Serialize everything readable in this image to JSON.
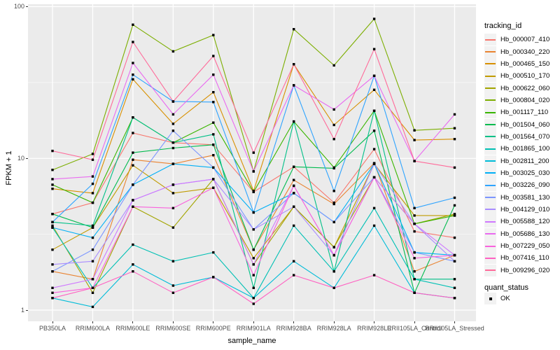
{
  "chart_data": {
    "type": "line",
    "title": "",
    "xlabel": "sample_name",
    "ylabel": "FPKM + 1",
    "y_scale": "log10",
    "ylim": [
      1,
      100
    ],
    "y_ticks": [
      {
        "value": 1,
        "label": "1"
      },
      {
        "value": 10,
        "label": "10"
      },
      {
        "value": 100,
        "label": "100"
      }
    ],
    "y_minor_ticks": [
      3.1623,
      31.623
    ],
    "grid": true,
    "panel_bg": "#EBEBEB",
    "grid_color": "#FFFFFF",
    "legend_position": "right",
    "legend_title": "tracking_id",
    "marker": {
      "shape": "square",
      "color": "#000000"
    },
    "categories": [
      "PB350LA",
      "RRIM600LA",
      "RRIM600LE",
      "RRIM600SE",
      "RRIM600PE",
      "RRIM901LA",
      "RRIM928BA",
      "RRIM928LA",
      "RRIM928LE",
      "RRII105LA_Control",
      "RRII105LA_Stressed"
    ],
    "series": [
      {
        "name": "Hb_000007_410",
        "color": "#F8766D",
        "values": [
          4.3,
          5.1,
          14.7,
          12.7,
          12.3,
          6.0,
          8.8,
          5.1,
          11.5,
          3.3,
          3.0
        ]
      },
      {
        "name": "Hb_000340_220",
        "color": "#EA8331",
        "values": [
          1.8,
          1.6,
          9.8,
          9.2,
          10.5,
          2.5,
          7.2,
          5.0,
          9.3,
          1.8,
          2.3
        ]
      },
      {
        "name": "Hb_000465_150",
        "color": "#D89000",
        "values": [
          6.3,
          5.9,
          33.2,
          16.9,
          27.3,
          6.1,
          41.7,
          16.6,
          28.3,
          13.2,
          13.4
        ]
      },
      {
        "name": "Hb_000510_170",
        "color": "#C09B00",
        "values": [
          2.5,
          3.5,
          9.0,
          5.9,
          6.4,
          2.2,
          4.8,
          2.6,
          9.2,
          4.2,
          4.2
        ]
      },
      {
        "name": "Hb_000622_060",
        "color": "#A3A500",
        "values": [
          3.6,
          1.3,
          4.8,
          3.5,
          7.3,
          2.0,
          4.8,
          2.6,
          7.5,
          3.7,
          4.3
        ]
      },
      {
        "name": "Hb_000804_020",
        "color": "#7CAE00",
        "values": [
          8.4,
          10.7,
          76.0,
          50.7,
          65.0,
          8.2,
          71.0,
          41.0,
          83.0,
          15.3,
          15.8
        ]
      },
      {
        "name": "Hb_001117_110",
        "color": "#39B600",
        "values": [
          6.7,
          5.1,
          18.6,
          12.7,
          17.2,
          6.0,
          17.5,
          8.7,
          20.6,
          3.7,
          4.2
        ]
      },
      {
        "name": "Hb_001504_060",
        "color": "#00BB4E",
        "values": [
          4.3,
          3.5,
          10.9,
          11.7,
          12.3,
          2.5,
          8.8,
          8.6,
          15.2,
          1.3,
          4.9
        ]
      },
      {
        "name": "Hb_001564_070",
        "color": "#00C087",
        "values": [
          3.8,
          3.6,
          18.6,
          12.7,
          14.4,
          1.4,
          17.5,
          1.8,
          20.6,
          1.6,
          1.6
        ]
      },
      {
        "name": "Hb_001865_100",
        "color": "#00C0B4",
        "values": [
          3.5,
          1.4,
          2.7,
          2.1,
          2.4,
          1.2,
          3.6,
          1.8,
          4.7,
          1.6,
          1.4
        ]
      },
      {
        "name": "Hb_002811_200",
        "color": "#00BCD8",
        "values": [
          1.2,
          1.05,
          2.0,
          1.45,
          1.65,
          1.2,
          2.1,
          1.4,
          3.6,
          1.3,
          1.2
        ]
      },
      {
        "name": "Hb_003025_030",
        "color": "#00B0F6",
        "values": [
          3.5,
          3.0,
          6.7,
          9.2,
          8.7,
          4.4,
          5.9,
          3.8,
          9.2,
          2.4,
          2.3
        ]
      },
      {
        "name": "Hb_003226_090",
        "color": "#2FA4FF",
        "values": [
          3.8,
          6.8,
          35.6,
          23.7,
          23.5,
          4.4,
          30.3,
          6.1,
          35.0,
          4.7,
          5.5
        ]
      },
      {
        "name": "Hb_003581_130",
        "color": "#7C96FF",
        "values": [
          1.8,
          2.5,
          6.7,
          15.2,
          8.7,
          3.4,
          5.9,
          3.8,
          7.5,
          2.4,
          2.1
        ]
      },
      {
        "name": "Hb_004129_010",
        "color": "#A98CFF",
        "values": [
          2.0,
          2.1,
          5.3,
          6.7,
          7.3,
          3.4,
          4.8,
          2.3,
          9.2,
          3.7,
          2.1
        ]
      },
      {
        "name": "Hb_005588_120",
        "color": "#CF78FF",
        "values": [
          1.4,
          1.6,
          5.3,
          6.7,
          7.3,
          2.0,
          6.6,
          2.3,
          7.5,
          3.7,
          2.3
        ]
      },
      {
        "name": "Hb_005686_130",
        "color": "#EA6AF0",
        "values": [
          7.3,
          7.6,
          42.5,
          19.5,
          35.6,
          8.2,
          30.3,
          21.0,
          35.0,
          9.6,
          19.5
        ]
      },
      {
        "name": "Hb_007229_050",
        "color": "#F962DD",
        "values": [
          1.3,
          1.4,
          4.8,
          4.7,
          6.4,
          1.7,
          6.6,
          2.3,
          7.5,
          2.2,
          2.3
        ]
      },
      {
        "name": "Hb_007416_110",
        "color": "#FF61C2",
        "values": [
          1.2,
          1.4,
          1.8,
          1.3,
          1.65,
          1.1,
          1.7,
          1.4,
          1.7,
          1.3,
          1.2
        ]
      },
      {
        "name": "Hb_009296_020",
        "color": "#FF6A9A",
        "values": [
          11.2,
          9.8,
          58.5,
          23.7,
          47.3,
          10.9,
          41.7,
          13.4,
          52.5,
          9.6,
          8.7
        ]
      }
    ],
    "quant_legend": {
      "title": "quant_status",
      "items": [
        {
          "label": "OK",
          "marker": "black-square"
        }
      ]
    }
  }
}
